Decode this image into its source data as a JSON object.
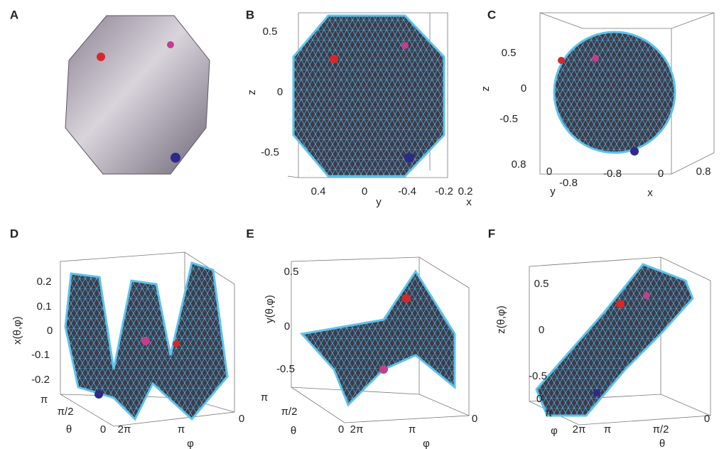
{
  "panels": [
    {
      "letter": "A"
    },
    {
      "letter": "B",
      "labels": [
        "z",
        "0.5",
        "0",
        "-0.5",
        "0.4",
        "0",
        "-0.4",
        "-0.2",
        "0.2",
        "y",
        "x"
      ]
    },
    {
      "letter": "C",
      "labels": [
        "z",
        "0.5",
        "0",
        "-0.5",
        "0.8",
        "0",
        "y",
        "-0.8",
        "-0.8",
        "0",
        "0.8",
        "x"
      ]
    },
    {
      "letter": "D",
      "labels": [
        "x(θ,φ)",
        "0.2",
        "0.1",
        "0",
        "-0.1",
        "-0.2",
        "π",
        "π/2",
        "θ",
        "0",
        "2π",
        "π",
        "φ",
        "0"
      ]
    },
    {
      "letter": "E",
      "labels": [
        "y(θ,φ)",
        "0.5",
        "0",
        "-0.5",
        "π",
        "π/2",
        "θ",
        "0",
        "2π",
        "π",
        "φ",
        "0"
      ]
    },
    {
      "letter": "F",
      "labels": [
        "z(θ,φ)",
        "0.5",
        "0",
        "-0.5",
        "0",
        "π",
        "φ",
        "2π",
        "π",
        "π/2",
        "θ",
        "0"
      ]
    }
  ]
}
